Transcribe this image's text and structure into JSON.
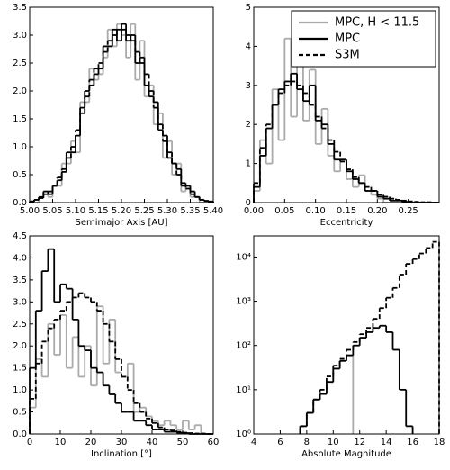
{
  "chart_data": [
    {
      "type": "histogram",
      "xlabel": "Semimajor Axis [AU]",
      "bins": [
        5.0,
        5.01,
        5.02,
        5.03,
        5.04,
        5.05,
        5.06,
        5.07,
        5.08,
        5.09,
        5.1,
        5.11,
        5.12,
        5.13,
        5.14,
        5.15,
        5.16,
        5.17,
        5.18,
        5.19,
        5.2,
        5.21,
        5.22,
        5.23,
        5.24,
        5.25,
        5.26,
        5.27,
        5.28,
        5.29,
        5.3,
        5.31,
        5.32,
        5.33,
        5.34,
        5.35,
        5.36,
        5.37,
        5.38,
        5.39,
        5.4
      ],
      "series": [
        {
          "color": "#aaaaaa",
          "linestyle": "solid",
          "values": [
            0,
            0,
            0.1,
            0.2,
            0.1,
            0.3,
            0.3,
            0.7,
            0.7,
            1.1,
            0.9,
            1.8,
            1.8,
            2.4,
            2.2,
            2.3,
            2.6,
            3.1,
            2.8,
            3.2,
            3.0,
            2.6,
            3.2,
            2.2,
            2.9,
            1.9,
            2.1,
            1.4,
            1.6,
            0.8,
            1.1,
            0.5,
            0.7,
            0.2,
            0.3,
            0.1,
            0.1,
            0,
            0,
            0
          ]
        },
        {
          "color": "#000000",
          "linestyle": "solid",
          "values": [
            0.02,
            0.05,
            0.08,
            0.2,
            0.15,
            0.3,
            0.4,
            0.55,
            0.9,
            0.9,
            1.2,
            1.7,
            2.0,
            2.1,
            2.3,
            2.4,
            2.8,
            2.8,
            3.1,
            2.9,
            3.2,
            2.9,
            3.0,
            2.5,
            2.6,
            2.1,
            1.9,
            1.8,
            1.3,
            1.2,
            0.8,
            0.7,
            0.6,
            0.3,
            0.3,
            0.2,
            0.1,
            0.05,
            0.03,
            0.01
          ]
        },
        {
          "color": "#000000",
          "linestyle": "dashed",
          "values": [
            0.02,
            0.05,
            0.1,
            0.15,
            0.2,
            0.3,
            0.45,
            0.6,
            0.8,
            1.0,
            1.3,
            1.6,
            1.9,
            2.2,
            2.4,
            2.5,
            2.7,
            2.9,
            3.0,
            3.1,
            3.1,
            3.0,
            2.9,
            2.7,
            2.5,
            2.3,
            2.0,
            1.7,
            1.4,
            1.1,
            0.9,
            0.7,
            0.5,
            0.35,
            0.25,
            0.15,
            0.1,
            0.05,
            0.03,
            0.02
          ]
        }
      ],
      "xlim": [
        5.0,
        5.4
      ],
      "xticks": [
        {
          "value": 5.0,
          "label": "5.00"
        },
        {
          "value": 5.05,
          "label": "5.05"
        },
        {
          "value": 5.1,
          "label": "5.10"
        },
        {
          "value": 5.15,
          "label": "5.15"
        },
        {
          "value": 5.2,
          "label": "5.20"
        },
        {
          "value": 5.25,
          "label": "5.25"
        },
        {
          "value": 5.3,
          "label": "5.30"
        },
        {
          "value": 5.35,
          "label": "5.35"
        },
        {
          "value": 5.4,
          "label": "5.40"
        }
      ],
      "ylim": [
        0,
        3.5
      ],
      "yticks": [
        {
          "value": 0,
          "label": "0.0"
        },
        {
          "value": 0.5,
          "label": "0.5"
        },
        {
          "value": 1,
          "label": "1.0"
        },
        {
          "value": 1.5,
          "label": "1.5"
        },
        {
          "value": 2,
          "label": "2.0"
        },
        {
          "value": 2.5,
          "label": "2.5"
        },
        {
          "value": 3,
          "label": "3.0"
        },
        {
          "value": 3.5,
          "label": "3.5"
        }
      ]
    },
    {
      "type": "histogram",
      "xlabel": "Eccentricity",
      "legend": "upper right",
      "bins": [
        0,
        0.01,
        0.02,
        0.03,
        0.04,
        0.05,
        0.06,
        0.07,
        0.08,
        0.09,
        0.1,
        0.11,
        0.12,
        0.13,
        0.14,
        0.15,
        0.16,
        0.17,
        0.18,
        0.19,
        0.2,
        0.21,
        0.22,
        0.23,
        0.24,
        0.25,
        0.26,
        0.27,
        0.28,
        0.29,
        0.3
      ],
      "series": [
        {
          "name": "MPC, H < 11.5",
          "color": "#aaaaaa",
          "linestyle": "solid",
          "values": [
            0.3,
            1.6,
            1.0,
            2.9,
            1.6,
            4.2,
            2.2,
            4.6,
            2.1,
            3.4,
            1.5,
            2.4,
            1.2,
            0.8,
            1.1,
            0.6,
            0.4,
            0.7,
            0.3,
            0.2,
            0.1,
            0,
            0,
            0,
            0,
            0,
            0,
            0,
            0,
            0
          ]
        },
        {
          "name": "MPC",
          "color": "#000000",
          "linestyle": "solid",
          "values": [
            0.4,
            1.2,
            1.9,
            2.5,
            2.9,
            3.1,
            3.3,
            2.9,
            2.6,
            3.0,
            2.1,
            2.0,
            1.5,
            1.1,
            1.1,
            0.8,
            0.6,
            0.5,
            0.3,
            0.3,
            0.15,
            0.1,
            0.05,
            0.05,
            0.02,
            0,
            0,
            0,
            0,
            0
          ]
        },
        {
          "name": "S3M",
          "color": "#000000",
          "linestyle": "dashed",
          "values": [
            0.5,
            1.4,
            2.0,
            2.5,
            2.8,
            3.0,
            3.1,
            3.0,
            2.8,
            2.5,
            2.2,
            1.9,
            1.6,
            1.3,
            1.05,
            0.85,
            0.65,
            0.5,
            0.4,
            0.3,
            0.2,
            0.15,
            0.1,
            0.07,
            0.05,
            0.03,
            0.02,
            0.01,
            0.01,
            0
          ]
        }
      ],
      "xlim": [
        0,
        0.3
      ],
      "xticks": [
        {
          "value": 0,
          "label": "0.00"
        },
        {
          "value": 0.05,
          "label": "0.05"
        },
        {
          "value": 0.1,
          "label": "0.10"
        },
        {
          "value": 0.15,
          "label": "0.15"
        },
        {
          "value": 0.2,
          "label": "0.20"
        },
        {
          "value": 0.25,
          "label": "0.25"
        }
      ],
      "ylim": [
        0,
        5
      ],
      "yticks": [
        0,
        1,
        2,
        3,
        4,
        5
      ]
    },
    {
      "type": "histogram",
      "xlabel": "Inclination [°]",
      "bins": [
        0,
        2,
        4,
        6,
        8,
        10,
        12,
        14,
        16,
        18,
        20,
        22,
        24,
        26,
        28,
        30,
        32,
        34,
        36,
        38,
        40,
        42,
        44,
        46,
        48,
        50,
        52,
        54,
        56,
        58,
        60
      ],
      "series": [
        {
          "color": "#aaaaaa",
          "linestyle": "solid",
          "values": [
            0.6,
            1.7,
            1.3,
            2.5,
            1.8,
            2.7,
            1.5,
            2.2,
            1.3,
            2.0,
            1.1,
            2.9,
            1.6,
            2.6,
            1.4,
            1.3,
            1.6,
            0.5,
            0.6,
            0.4,
            0.3,
            0.2,
            0.3,
            0.2,
            0.1,
            0.3,
            0.1,
            0.2,
            0,
            0
          ]
        },
        {
          "color": "#000000",
          "linestyle": "solid",
          "values": [
            1.5,
            2.8,
            3.7,
            4.2,
            3.0,
            3.4,
            3.3,
            2.6,
            2.0,
            1.9,
            1.5,
            1.4,
            1.1,
            0.9,
            0.7,
            0.5,
            0.5,
            0.3,
            0.3,
            0.2,
            0.1,
            0.1,
            0.05,
            0.05,
            0.03,
            0.02,
            0,
            0,
            0,
            0
          ]
        },
        {
          "color": "#000000",
          "linestyle": "dashed",
          "values": [
            0.8,
            1.6,
            2.1,
            2.4,
            2.6,
            2.8,
            3.0,
            3.1,
            3.2,
            3.1,
            3.0,
            2.8,
            2.5,
            2.1,
            1.7,
            1.3,
            1.0,
            0.7,
            0.5,
            0.35,
            0.25,
            0.15,
            0.1,
            0.08,
            0.05,
            0.03,
            0.02,
            0.01,
            0.01,
            0
          ]
        }
      ],
      "xlim": [
        0,
        60
      ],
      "xticks": [
        0,
        10,
        20,
        30,
        40,
        50,
        60
      ],
      "ylim": [
        0,
        4.5
      ],
      "yticks": [
        {
          "value": 0,
          "label": "0.0"
        },
        {
          "value": 0.5,
          "label": "0.5"
        },
        {
          "value": 1,
          "label": "1.0"
        },
        {
          "value": 1.5,
          "label": "1.5"
        },
        {
          "value": 2,
          "label": "2.0"
        },
        {
          "value": 2.5,
          "label": "2.5"
        },
        {
          "value": 3,
          "label": "3.0"
        },
        {
          "value": 3.5,
          "label": "3.5"
        },
        {
          "value": 4,
          "label": "4.0"
        },
        {
          "value": 4.5,
          "label": "4.5"
        }
      ]
    },
    {
      "type": "histogram",
      "xlabel": "Absolute Magnitude",
      "log_y": true,
      "bins": [
        7.5,
        8,
        8.5,
        9,
        9.5,
        10,
        10.5,
        11,
        11.5,
        12,
        12.5,
        13,
        13.5,
        14,
        14.5,
        15,
        15.5,
        16,
        16.5,
        17,
        17.5,
        18
      ],
      "series": [
        {
          "color": "#aaaaaa",
          "linestyle": "solid",
          "values": [
            1.5,
            3,
            6,
            8,
            15,
            30,
            45,
            60,
            null,
            null,
            null,
            null,
            null,
            null,
            null,
            null,
            null,
            null,
            null,
            null,
            null
          ]
        },
        {
          "color": "#000000",
          "linestyle": "solid",
          "values": [
            1.5,
            3,
            6,
            8,
            15,
            30,
            45,
            60,
            100,
            150,
            200,
            250,
            280,
            200,
            80,
            10,
            1.5,
            null,
            null,
            null,
            null
          ]
        },
        {
          "color": "#000000",
          "linestyle": "dashed",
          "values": [
            1.5,
            3,
            6,
            10,
            20,
            35,
            50,
            80,
            120,
            180,
            250,
            400,
            700,
            1200,
            2000,
            4000,
            7000,
            9000,
            12000,
            16000,
            22000
          ]
        }
      ],
      "xlim": [
        4,
        18
      ],
      "xticks": [
        4,
        6,
        8,
        10,
        12,
        14,
        16,
        18
      ],
      "ylim": [
        1,
        30000
      ],
      "yticks": [
        {
          "value": 1,
          "label": "10⁰"
        },
        {
          "value": 10,
          "label": "10¹"
        },
        {
          "value": 100,
          "label": "10²"
        },
        {
          "value": 1000,
          "label": "10³"
        },
        {
          "value": 10000,
          "label": "10⁴"
        }
      ]
    }
  ]
}
